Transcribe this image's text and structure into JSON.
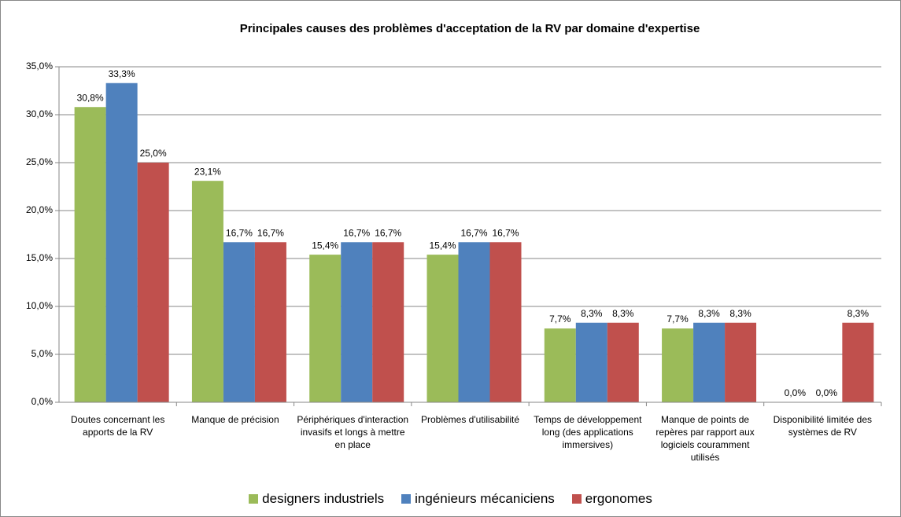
{
  "chart_data": {
    "type": "bar",
    "title": "Principales causes des problèmes d'acceptation de la RV par domaine d'expertise",
    "categories": [
      "Doutes concernant les apports de la RV",
      "Manque de précision",
      "Périphériques d'interaction invasifs et longs à mettre en place",
      "Problèmes d'utilisabilité",
      "Temps de développement long (des applications immersives)",
      "Manque de points de repères par rapport aux logiciels couramment utilisés",
      "Disponibilité limitée des systèmes de RV"
    ],
    "series": [
      {
        "name": "designers industriels",
        "color": "#9bbb59",
        "values": [
          30.8,
          23.1,
          15.4,
          15.4,
          7.7,
          7.7,
          0
        ],
        "value_labels": [
          "30,8%",
          "23,1%",
          "15,4%",
          "15,4%",
          "7,7%",
          "7,7%",
          "0,0%"
        ]
      },
      {
        "name": "ingénieurs mécaniciens",
        "color": "#4f81bd",
        "values": [
          33.3,
          16.7,
          16.7,
          16.7,
          8.3,
          8.3,
          0
        ],
        "value_labels": [
          "33,3%",
          "16,7%",
          "16,7%",
          "16,7%",
          "8,3%",
          "8,3%",
          "0,0%"
        ]
      },
      {
        "name": "ergonomes",
        "color": "#c0504d",
        "values": [
          25.0,
          16.7,
          16.7,
          16.7,
          8.3,
          8.3,
          8.3
        ],
        "value_labels": [
          "25,0%",
          "16,7%",
          "16,7%",
          "16,7%",
          "8,3%",
          "8,3%",
          "8,3%"
        ]
      }
    ],
    "ylim": [
      0,
      35
    ],
    "yticks": [
      {
        "value": 0,
        "label": "0,0%"
      },
      {
        "value": 5,
        "label": "5,0%"
      },
      {
        "value": 10,
        "label": "10,0%"
      },
      {
        "value": 15,
        "label": "15,0%"
      },
      {
        "value": 20,
        "label": "20,0%"
      },
      {
        "value": 25,
        "label": "25,0%"
      },
      {
        "value": 30,
        "label": "30,0%"
      },
      {
        "value": 35,
        "label": "35,0%"
      }
    ],
    "grid": true,
    "legend": "bottom"
  }
}
